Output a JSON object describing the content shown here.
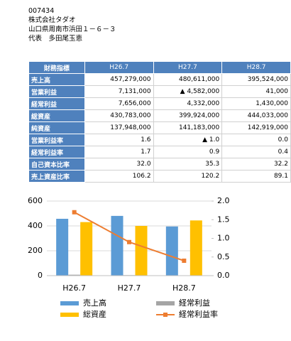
{
  "header": {
    "code": "007434",
    "company": "株式会社タダオ",
    "address": "山口県周南市浜田１－６－３",
    "representative": "代表　多田尾玉恵"
  },
  "table": {
    "columns": [
      "財務指標",
      "H26.7",
      "H27.7",
      "H28.7"
    ],
    "rows": [
      [
        "売上高",
        "457,279,000",
        "480,611,000",
        "395,524,000"
      ],
      [
        "営業利益",
        "7,131,000",
        "▲ 4,582,000",
        "41,000"
      ],
      [
        "経常利益",
        "7,656,000",
        "4,332,000",
        "1,430,000"
      ],
      [
        "総資産",
        "430,783,000",
        "399,924,000",
        "444,033,000"
      ],
      [
        "純資産",
        "137,948,000",
        "141,183,000",
        "142,919,000"
      ],
      [
        "営業利益率",
        "1.6",
        "▲ 1.0",
        "0.0"
      ],
      [
        "経常利益率",
        "1.7",
        "0.9",
        "0.4"
      ],
      [
        "自己資本比率",
        "32.0",
        "35.3",
        "32.2"
      ],
      [
        "売上資産比率",
        "106.2",
        "120.2",
        "89.1"
      ]
    ]
  },
  "chart_data": {
    "type": "bar",
    "categories": [
      "H26.7",
      "H27.7",
      "H28.7"
    ],
    "series": [
      {
        "name": "売上高",
        "color": "#5b9bd5",
        "values": [
          457.279,
          480.611,
          395.524
        ]
      },
      {
        "name": "経常利益",
        "color": "#a5a5a5",
        "values": [
          7.656,
          4.332,
          1.43
        ]
      },
      {
        "name": "総資産",
        "color": "#ffc000",
        "values": [
          430.783,
          399.924,
          444.033
        ]
      },
      {
        "name": "経常利益率",
        "color": "#ed7d31",
        "values": [
          1.7,
          0.9,
          0.4
        ],
        "axis": "y2",
        "type": "line"
      }
    ],
    "ylim": [
      0,
      600
    ],
    "yticks": [
      0,
      200,
      400,
      600
    ],
    "y2lim": [
      0,
      2
    ],
    "y2ticks": [
      {
        "value": 0,
        "label": "0.0"
      },
      {
        "value": 0.5,
        "label": "0.5"
      },
      {
        "value": 1,
        "label": "1.0"
      },
      {
        "value": 1.5,
        "label": "1.5"
      },
      {
        "value": 2,
        "label": "2.0"
      }
    ],
    "grid": true
  }
}
